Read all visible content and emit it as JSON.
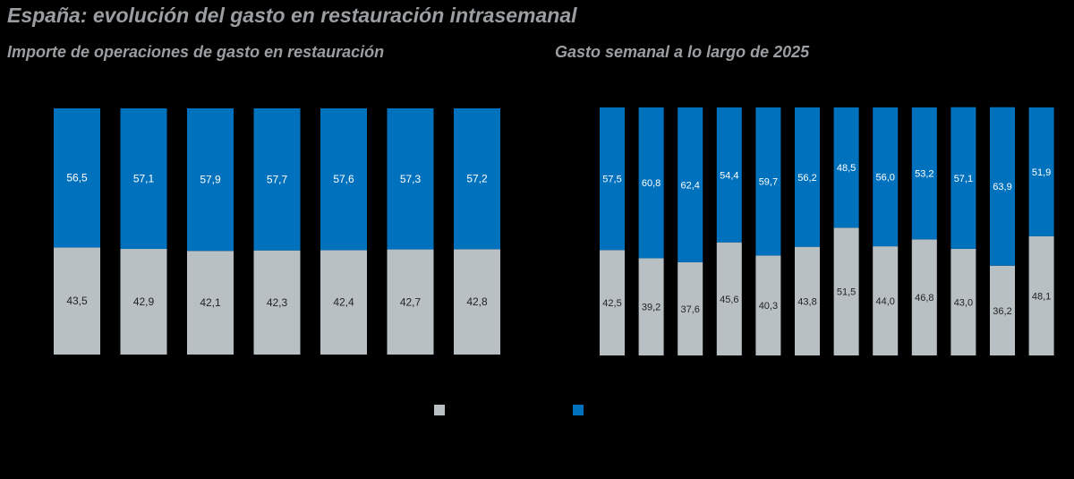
{
  "title": "España: evolución del gasto en restauración intrasemanal",
  "colors": {
    "gray": "#b9c0c4",
    "blue": "#0071bd",
    "background": "#000000",
    "title_text": "#9a9ea1",
    "label_dark": "#222222",
    "label_light": "#ffffff"
  },
  "legend": {
    "items": [
      {
        "color": "#b9c0c4",
        "label": ""
      },
      {
        "color": "#0071bd",
        "label": ""
      }
    ]
  },
  "chart_data": [
    {
      "type": "bar",
      "stacked": true,
      "title": "Importe de operaciones de gasto en restauración",
      "categories": [
        "",
        "",
        "",
        "",
        "",
        "",
        ""
      ],
      "ylim": [
        0,
        100
      ],
      "series": [
        {
          "color": "#b9c0c4",
          "values": [
            43.5,
            42.9,
            42.1,
            42.3,
            42.4,
            42.7,
            42.8
          ]
        },
        {
          "color": "#0071bd",
          "values": [
            56.5,
            57.1,
            57.9,
            57.7,
            57.6,
            57.3,
            57.2
          ]
        }
      ]
    },
    {
      "type": "bar",
      "stacked": true,
      "title": "Gasto semanal a lo largo de 2025",
      "categories": [
        "",
        "",
        "",
        "",
        "",
        "",
        "",
        "",
        "",
        "",
        "",
        ""
      ],
      "ylim": [
        0,
        100
      ],
      "series": [
        {
          "color": "#b9c0c4",
          "values": [
            42.5,
            39.2,
            37.6,
            45.6,
            40.3,
            43.8,
            51.5,
            44.0,
            46.8,
            43.0,
            36.2,
            48.1
          ]
        },
        {
          "color": "#0071bd",
          "values": [
            57.5,
            60.8,
            62.4,
            54.4,
            59.7,
            56.2,
            48.5,
            56.0,
            53.2,
            57.1,
            63.9,
            51.9
          ]
        }
      ]
    }
  ]
}
